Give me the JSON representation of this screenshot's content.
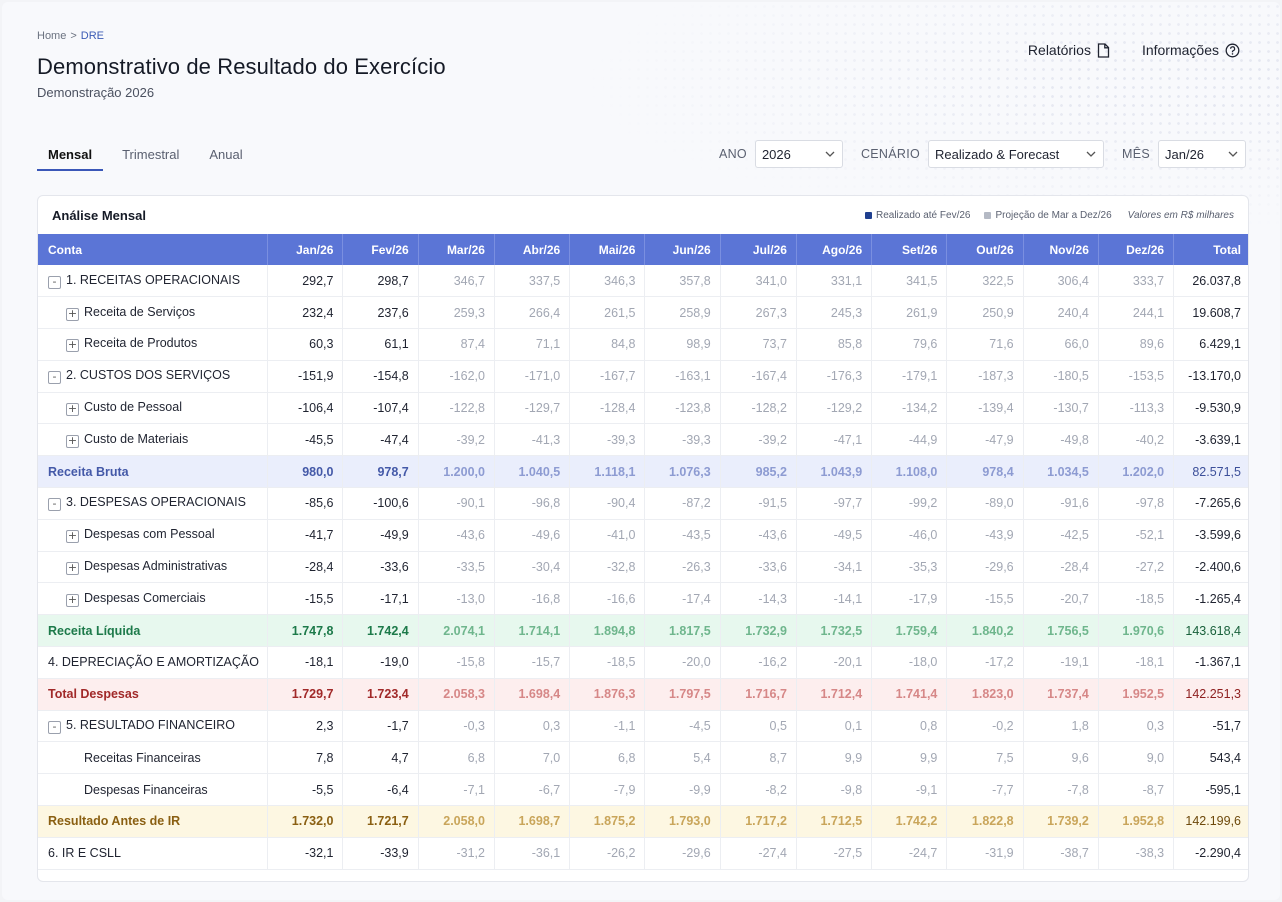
{
  "breadcrumb": {
    "home": "Home",
    "separator": ">",
    "current": "DRE"
  },
  "page": {
    "title": "Demonstrativo de Resultado do Exercício",
    "subtitle": "Demonstração 2026"
  },
  "actions": {
    "reports": "Relatórios",
    "info": "Informações"
  },
  "tabs": [
    "Mensal",
    "Trimestral",
    "Anual"
  ],
  "filters": {
    "year_label": "ANO",
    "year_value": "2026",
    "scenario_label": "CENÁRIO",
    "scenario_value": "Realizado & Forecast",
    "month_label": "MÊS",
    "month_value": "Jan/26"
  },
  "card": {
    "title": "Análise Mensal",
    "legend_realized": "Realizado até Fev/26",
    "legend_projection": "Projeção de Mar a Dez/26",
    "units_note": "Valores em R$ milhares"
  },
  "colors": {
    "accent": "#5b75d6",
    "realized": "#1f3f8f",
    "projection": "#b4b9c4"
  },
  "table": {
    "headers": [
      "Conta",
      "Jan/26",
      "Fev/26",
      "Mar/26",
      "Abr/26",
      "Mai/26",
      "Jun/26",
      "Jul/26",
      "Ago/26",
      "Set/26",
      "Out/26",
      "Nov/26",
      "Dez/26",
      "Total"
    ],
    "rows": [
      {
        "label": "1. RECEITAS OPERACIONAIS",
        "type": "group",
        "toggle": "-",
        "values": [
          "292,7",
          "298,7",
          "346,7",
          "337,5",
          "346,3",
          "357,8",
          "341,0",
          "331,1",
          "341,5",
          "322,5",
          "306,4",
          "333,7",
          "26.037,8"
        ]
      },
      {
        "label": "Receita de Serviços",
        "type": "child",
        "toggle": "+",
        "values": [
          "232,4",
          "237,6",
          "259,3",
          "266,4",
          "261,5",
          "258,9",
          "267,3",
          "245,3",
          "261,9",
          "250,9",
          "240,4",
          "244,1",
          "19.608,7"
        ]
      },
      {
        "label": "Receita de Produtos",
        "type": "child",
        "toggle": "+",
        "values": [
          "60,3",
          "61,1",
          "87,4",
          "71,1",
          "84,8",
          "98,9",
          "73,7",
          "85,8",
          "79,6",
          "71,6",
          "66,0",
          "89,6",
          "6.429,1"
        ]
      },
      {
        "label": "2. CUSTOS DOS SERVIÇOS",
        "type": "group",
        "toggle": "-",
        "values": [
          "-151,9",
          "-154,8",
          "-162,0",
          "-171,0",
          "-167,7",
          "-163,1",
          "-167,4",
          "-176,3",
          "-179,1",
          "-187,3",
          "-180,5",
          "-153,5",
          "-13.170,0"
        ]
      },
      {
        "label": "Custo de Pessoal",
        "type": "child",
        "toggle": "+",
        "values": [
          "-106,4",
          "-107,4",
          "-122,8",
          "-129,7",
          "-128,4",
          "-123,8",
          "-128,2",
          "-129,2",
          "-134,2",
          "-139,4",
          "-130,7",
          "-113,3",
          "-9.530,9"
        ]
      },
      {
        "label": "Custo de Materiais",
        "type": "child",
        "toggle": "+",
        "values": [
          "-45,5",
          "-47,4",
          "-39,2",
          "-41,3",
          "-39,3",
          "-39,3",
          "-39,2",
          "-47,1",
          "-44,9",
          "-47,9",
          "-49,8",
          "-40,2",
          "-3.639,1"
        ]
      },
      {
        "label": "Receita Bruta",
        "type": "sum-bruta",
        "values": [
          "980,0",
          "978,7",
          "1.200,0",
          "1.040,5",
          "1.118,1",
          "1.076,3",
          "985,2",
          "1.043,9",
          "1.108,0",
          "978,4",
          "1.034,5",
          "1.202,0",
          "82.571,5"
        ]
      },
      {
        "label": "3. DESPESAS OPERACIONAIS",
        "type": "group",
        "toggle": "-",
        "values": [
          "-85,6",
          "-100,6",
          "-90,1",
          "-96,8",
          "-90,4",
          "-87,2",
          "-91,5",
          "-97,7",
          "-99,2",
          "-89,0",
          "-91,6",
          "-97,8",
          "-7.265,6"
        ]
      },
      {
        "label": "Despesas com Pessoal",
        "type": "child",
        "toggle": "+",
        "values": [
          "-41,7",
          "-49,9",
          "-43,6",
          "-49,6",
          "-41,0",
          "-43,5",
          "-43,6",
          "-49,5",
          "-46,0",
          "-43,9",
          "-42,5",
          "-52,1",
          "-3.599,6"
        ]
      },
      {
        "label": "Despesas Administrativas",
        "type": "child",
        "toggle": "+",
        "values": [
          "-28,4",
          "-33,6",
          "-33,5",
          "-30,4",
          "-32,8",
          "-26,3",
          "-33,6",
          "-34,1",
          "-35,3",
          "-29,6",
          "-28,4",
          "-27,2",
          "-2.400,6"
        ]
      },
      {
        "label": "Despesas Comerciais",
        "type": "child",
        "toggle": "+",
        "values": [
          "-15,5",
          "-17,1",
          "-13,0",
          "-16,8",
          "-16,6",
          "-17,4",
          "-14,3",
          "-14,1",
          "-17,9",
          "-15,5",
          "-20,7",
          "-18,5",
          "-1.265,4"
        ]
      },
      {
        "label": "Receita Líquida",
        "type": "sum-liquida",
        "values": [
          "1.747,8",
          "1.742,4",
          "2.074,1",
          "1.714,1",
          "1.894,8",
          "1.817,5",
          "1.732,9",
          "1.732,5",
          "1.759,4",
          "1.840,2",
          "1.756,5",
          "1.970,6",
          "143.618,4"
        ]
      },
      {
        "label": "4. DEPRECIAÇÃO E AMORTIZAÇÃO",
        "type": "plain",
        "values": [
          "-18,1",
          "-19,0",
          "-15,8",
          "-15,7",
          "-18,5",
          "-20,0",
          "-16,2",
          "-20,1",
          "-18,0",
          "-17,2",
          "-19,1",
          "-18,1",
          "-1.367,1"
        ]
      },
      {
        "label": "Total Despesas",
        "type": "sum-despesas",
        "values": [
          "1.729,7",
          "1.723,4",
          "2.058,3",
          "1.698,4",
          "1.876,3",
          "1.797,5",
          "1.716,7",
          "1.712,4",
          "1.741,4",
          "1.823,0",
          "1.737,4",
          "1.952,5",
          "142.251,3"
        ]
      },
      {
        "label": "5. RESULTADO FINANCEIRO",
        "type": "group",
        "toggle": "-",
        "values": [
          "2,3",
          "-1,7",
          "-0,3",
          "0,3",
          "-1,1",
          "-4,5",
          "0,5",
          "0,1",
          "0,8",
          "-0,2",
          "1,8",
          "0,3",
          "-51,7"
        ]
      },
      {
        "label": "Receitas Financeiras",
        "type": "child-noexp",
        "values": [
          "7,8",
          "4,7",
          "6,8",
          "7,0",
          "6,8",
          "5,4",
          "8,7",
          "9,9",
          "9,9",
          "7,5",
          "9,6",
          "9,0",
          "543,4"
        ]
      },
      {
        "label": "Despesas Financeiras",
        "type": "child-noexp",
        "values": [
          "-5,5",
          "-6,4",
          "-7,1",
          "-6,7",
          "-7,9",
          "-9,9",
          "-8,2",
          "-9,8",
          "-9,1",
          "-7,7",
          "-7,8",
          "-8,7",
          "-595,1"
        ]
      },
      {
        "label": "Resultado Antes de IR",
        "type": "sum-resultado",
        "values": [
          "1.732,0",
          "1.721,7",
          "2.058,0",
          "1.698,7",
          "1.875,2",
          "1.793,0",
          "1.717,2",
          "1.712,5",
          "1.742,2",
          "1.822,8",
          "1.739,2",
          "1.952,8",
          "142.199,6"
        ]
      },
      {
        "label": "6. IR E CSLL",
        "type": "plain",
        "values": [
          "-32,1",
          "-33,9",
          "-31,2",
          "-36,1",
          "-26,2",
          "-29,6",
          "-27,4",
          "-27,5",
          "-24,7",
          "-31,9",
          "-38,7",
          "-38,3",
          "-2.290,4"
        ]
      }
    ],
    "realized_columns": 2
  }
}
